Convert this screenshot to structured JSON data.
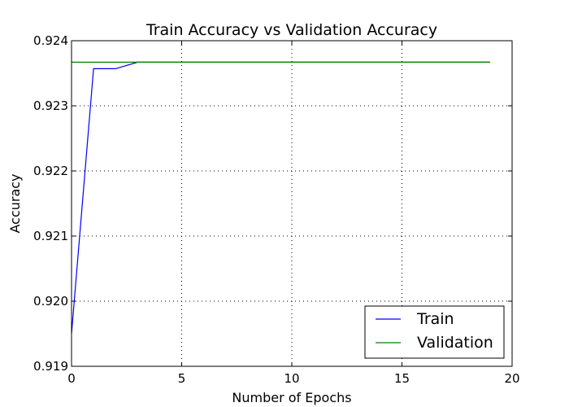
{
  "chart_data": {
    "type": "line",
    "title": "Train Accuracy vs Validation Accuracy",
    "xlabel": "Number of Epochs",
    "ylabel": "Accuracy",
    "xlim": [
      0,
      20
    ],
    "ylim": [
      0.919,
      0.924
    ],
    "x_ticks": [
      0,
      5,
      10,
      15,
      20
    ],
    "x_tick_labels": [
      "0",
      "5",
      "10",
      "15",
      "20"
    ],
    "y_ticks": [
      0.919,
      0.92,
      0.921,
      0.922,
      0.923,
      0.924
    ],
    "y_tick_labels": [
      "0.919",
      "0.920",
      "0.921",
      "0.922",
      "0.923",
      "0.924"
    ],
    "grid": true,
    "legend_position": "bottom-right",
    "x": [
      0,
      1,
      2,
      3,
      4,
      5,
      6,
      7,
      8,
      9,
      10,
      11,
      12,
      13,
      14,
      15,
      16,
      17,
      18,
      19
    ],
    "series": [
      {
        "name": "Train",
        "color": "#0000ff",
        "values": [
          0.9195,
          0.92357,
          0.92357,
          0.92367,
          0.92367,
          0.92367,
          0.92367,
          0.92367,
          0.92367,
          0.92367,
          0.92367,
          0.92367,
          0.92367,
          0.92367,
          0.92367,
          0.92367,
          0.92367,
          0.92367,
          0.92367,
          0.92367
        ]
      },
      {
        "name": "Validation",
        "color": "#008000",
        "values": [
          0.92367,
          0.92367,
          0.92367,
          0.92367,
          0.92367,
          0.92367,
          0.92367,
          0.92367,
          0.92367,
          0.92367,
          0.92367,
          0.92367,
          0.92367,
          0.92367,
          0.92367,
          0.92367,
          0.92367,
          0.92367,
          0.92367,
          0.92367
        ]
      }
    ]
  }
}
